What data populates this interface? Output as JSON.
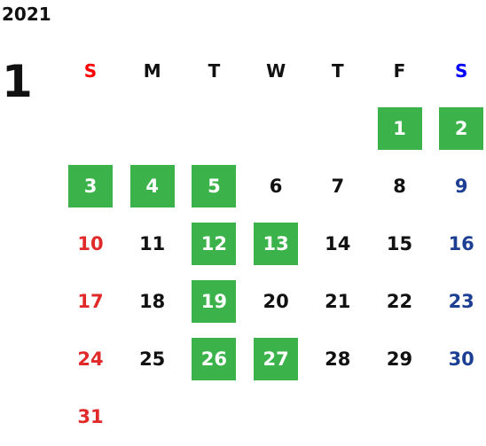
{
  "calendar": {
    "year": "2021",
    "month": "1",
    "weekdays": [
      "S",
      "M",
      "T",
      "W",
      "T",
      "F",
      "S"
    ],
    "weeks": [
      [
        null,
        null,
        null,
        null,
        null,
        {
          "label": "1",
          "highlighted": true
        },
        {
          "label": "2",
          "highlighted": true
        }
      ],
      [
        {
          "label": "3",
          "highlighted": true
        },
        {
          "label": "4",
          "highlighted": true
        },
        {
          "label": "5",
          "highlighted": true
        },
        {
          "label": "6",
          "highlighted": false
        },
        {
          "label": "7",
          "highlighted": false
        },
        {
          "label": "8",
          "highlighted": false
        },
        {
          "label": "9",
          "highlighted": false
        }
      ],
      [
        {
          "label": "10",
          "highlighted": false
        },
        {
          "label": "11",
          "highlighted": false
        },
        {
          "label": "12",
          "highlighted": true
        },
        {
          "label": "13",
          "highlighted": true
        },
        {
          "label": "14",
          "highlighted": false
        },
        {
          "label": "15",
          "highlighted": false
        },
        {
          "label": "16",
          "highlighted": false
        }
      ],
      [
        {
          "label": "17",
          "highlighted": false
        },
        {
          "label": "18",
          "highlighted": false
        },
        {
          "label": "19",
          "highlighted": true
        },
        {
          "label": "20",
          "highlighted": false
        },
        {
          "label": "21",
          "highlighted": false
        },
        {
          "label": "22",
          "highlighted": false
        },
        {
          "label": "23",
          "highlighted": false
        }
      ],
      [
        {
          "label": "24",
          "highlighted": false
        },
        {
          "label": "25",
          "highlighted": false
        },
        {
          "label": "26",
          "highlighted": true
        },
        {
          "label": "27",
          "highlighted": true
        },
        {
          "label": "28",
          "highlighted": false
        },
        {
          "label": "29",
          "highlighted": false
        },
        {
          "label": "30",
          "highlighted": false
        }
      ],
      [
        {
          "label": "31",
          "highlighted": false
        },
        null,
        null,
        null,
        null,
        null,
        null
      ]
    ]
  }
}
